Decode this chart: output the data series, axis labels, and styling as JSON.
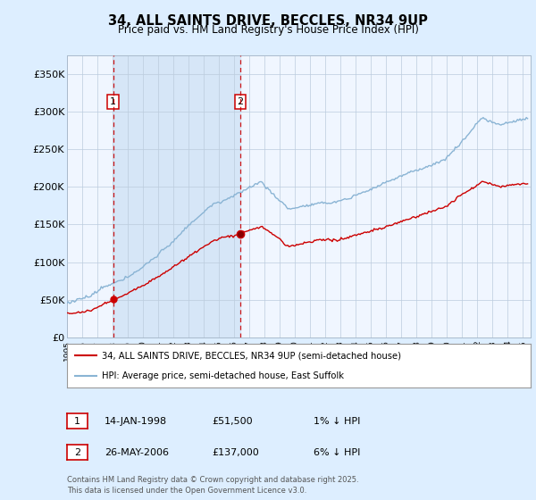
{
  "title": "34, ALL SAINTS DRIVE, BECCLES, NR34 9UP",
  "subtitle": "Price paid vs. HM Land Registry's House Price Index (HPI)",
  "legend_line1": "34, ALL SAINTS DRIVE, BECCLES, NR34 9UP (semi-detached house)",
  "legend_line2": "HPI: Average price, semi-detached house, East Suffolk",
  "footnote": "Contains HM Land Registry data © Crown copyright and database right 2025.\nThis data is licensed under the Open Government Licence v3.0.",
  "annotation1_label": "1",
  "annotation1_date": "14-JAN-1998",
  "annotation1_price": "£51,500",
  "annotation1_note": "1% ↓ HPI",
  "annotation2_label": "2",
  "annotation2_date": "26-MAY-2006",
  "annotation2_price": "£137,000",
  "annotation2_note": "6% ↓ HPI",
  "purchase1_year": 1998.04,
  "purchase1_value": 51500,
  "purchase2_year": 2006.4,
  "purchase2_value": 137000,
  "hpi_color": "#8ab4d4",
  "price_color": "#cc0000",
  "dashed_line_color": "#cc0000",
  "shade_color": "#ddeeff",
  "background_color": "#ddeeff",
  "plot_bg_color": "#f0f6ff",
  "ylim": [
    0,
    375000
  ],
  "xlim_start": 1995.0,
  "xlim_end": 2025.5,
  "yticks": [
    0,
    50000,
    100000,
    150000,
    200000,
    250000,
    300000,
    350000
  ],
  "ytick_labels": [
    "£0",
    "£50K",
    "£100K",
    "£150K",
    "£200K",
    "£250K",
    "£300K",
    "£350K"
  ]
}
